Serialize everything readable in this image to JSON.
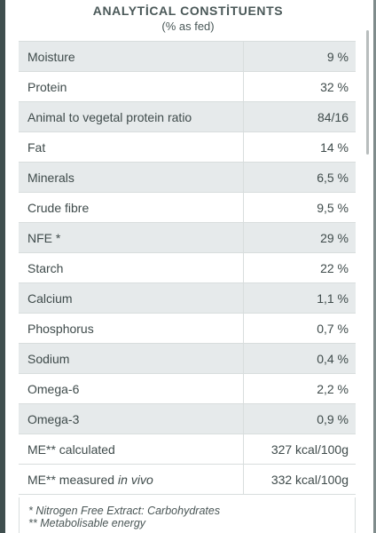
{
  "header": {
    "title": "ANALYTİCAL CONSTİTUENTS",
    "subtitle": "(% as fed)"
  },
  "rows": [
    {
      "label": "Moisture",
      "value": "9 %"
    },
    {
      "label": "Protein",
      "value": "32 %"
    },
    {
      "label": "Animal to vegetal protein ratio",
      "value": "84/16"
    },
    {
      "label": "Fat",
      "value": "14 %"
    },
    {
      "label": "Minerals",
      "value": "6,5 %"
    },
    {
      "label": "Crude fibre",
      "value": "9,5 %"
    },
    {
      "label": "NFE *",
      "value": "29 %"
    },
    {
      "label": "Starch",
      "value": "22 %"
    },
    {
      "label": "Calcium",
      "value": "1,1 %"
    },
    {
      "label": "Phosphorus",
      "value": "0,7 %"
    },
    {
      "label": "Sodium",
      "value": "0,4 %"
    },
    {
      "label": "Omega-6",
      "value": "2,2 %"
    },
    {
      "label": "Omega-3",
      "value": "0,9 %"
    },
    {
      "label": "ME** calculated",
      "value": "327 kcal/100g"
    },
    {
      "label": "ME** measured",
      "label_suffix": "in vivo",
      "value": "332 kcal/100g"
    }
  ],
  "footnotes": [
    "* Nitrogen Free Extract: Carbohydrates",
    "** Metabolisable energy"
  ]
}
